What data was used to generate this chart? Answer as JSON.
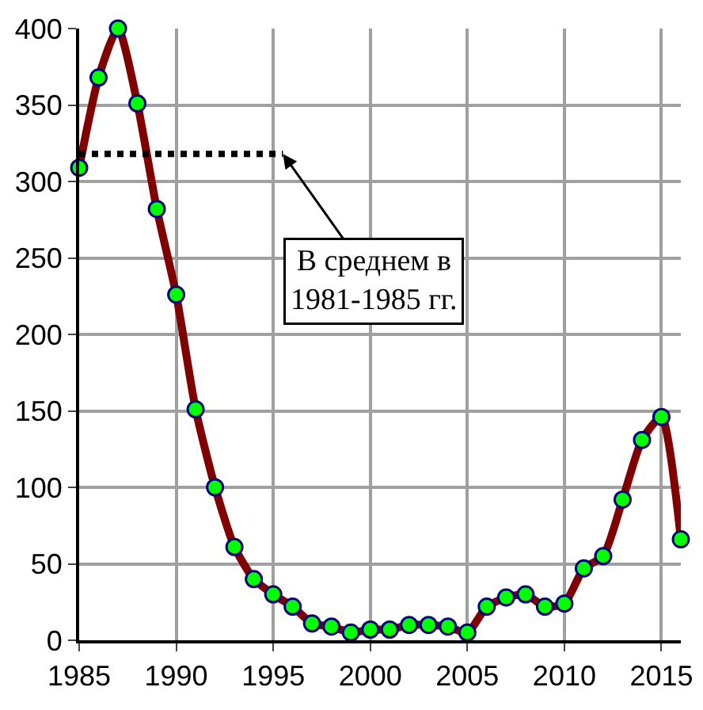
{
  "chart_data": {
    "type": "line",
    "x": [
      1985,
      1986,
      1987,
      1988,
      1989,
      1990,
      1991,
      1992,
      1993,
      1994,
      1995,
      1996,
      1997,
      1998,
      1999,
      2000,
      2001,
      2002,
      2003,
      2004,
      2005,
      2006,
      2007,
      2008,
      2009,
      2010,
      2011,
      2012,
      2013,
      2014,
      2015,
      2016
    ],
    "series": [
      {
        "color": "#800000",
        "marker": "circle",
        "values": [
          309,
          368,
          400,
          351,
          282,
          226,
          151,
          100,
          61,
          40,
          30,
          22,
          11,
          9,
          5,
          7,
          7,
          10,
          10,
          9,
          5,
          22,
          28,
          30,
          22,
          24,
          47,
          55,
          92,
          131,
          146,
          66
        ]
      },
      {
        "type": "line",
        "color": "#000000",
        "marker": "none",
        "line_style": "dotted",
        "x": [
          1985,
          1995.5
        ],
        "values": [
          318,
          318
        ]
      }
    ],
    "annotations": [
      {
        "text": "В среднем в\n1981-1985 гг.",
        "x": 1995.5,
        "y": 318
      }
    ],
    "xlim": [
      1985,
      2016
    ],
    "xticks": [
      1985,
      1990,
      1995,
      2000,
      2005,
      2010,
      2015
    ],
    "ylim": [
      0,
      400
    ],
    "yticks": [
      0,
      50,
      100,
      150,
      200,
      250,
      300,
      350,
      400
    ],
    "grid": true
  }
}
